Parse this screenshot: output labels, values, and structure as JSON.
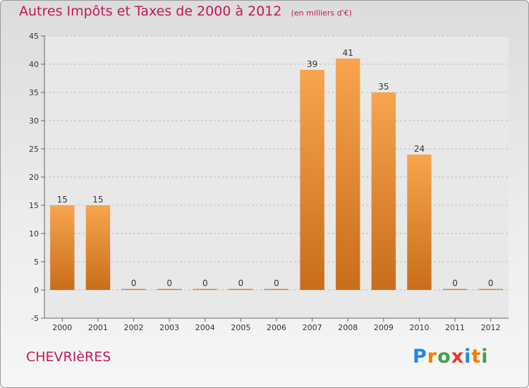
{
  "chart_data": {
    "type": "bar",
    "title": "Autres Impôts et Taxes de 2000 à 2012",
    "subtitle": "(en milliers d'€)",
    "categories": [
      "2000",
      "2001",
      "2002",
      "2003",
      "2004",
      "2005",
      "2006",
      "2007",
      "2008",
      "2009",
      "2010",
      "2011",
      "2012"
    ],
    "values": [
      15,
      15,
      0,
      0,
      0,
      0,
      0,
      39,
      41,
      35,
      24,
      0,
      0
    ],
    "ylim": [
      -5,
      45
    ],
    "yticks": [
      -5,
      0,
      5,
      10,
      15,
      20,
      25,
      30,
      35,
      40,
      45
    ],
    "grid": "horizontal dashed",
    "legend": "none",
    "bar_color_top": "#f7a54e",
    "bar_color_bottom": "#c96d1a"
  },
  "footer": {
    "commune": "CHEVRIèRES",
    "logo": {
      "letters": [
        "P",
        "r",
        "o",
        "x",
        "i",
        "t",
        "i"
      ],
      "colors": [
        "#1e88e5",
        "#f57c00",
        "#43a047",
        "#e53935",
        "#1e88e5",
        "#f57c00",
        "#43a047"
      ]
    }
  }
}
